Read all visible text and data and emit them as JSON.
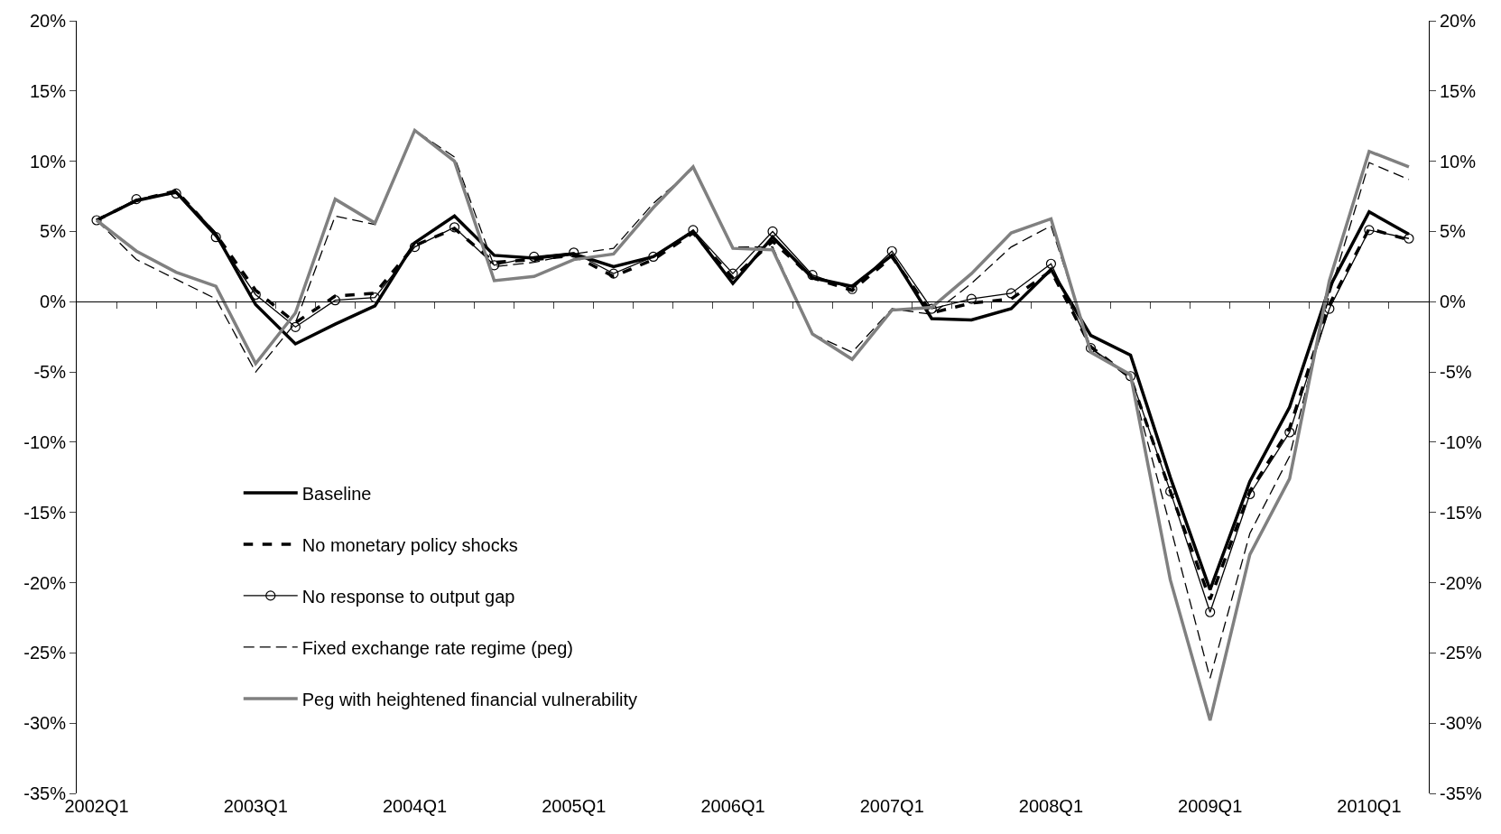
{
  "chart_data": {
    "type": "line",
    "categories": [
      "2002Q1",
      null,
      null,
      null,
      "2003Q1",
      null,
      null,
      null,
      "2004Q1",
      null,
      null,
      null,
      "2005Q1",
      null,
      null,
      null,
      "2006Q1",
      null,
      null,
      null,
      "2007Q1",
      null,
      null,
      null,
      "2008Q1",
      null,
      null,
      null,
      "2009Q1",
      null,
      null,
      null,
      "2010Q1",
      null
    ],
    "series": [
      {
        "name": "Baseline",
        "color": "#000000",
        "line_style": "solid",
        "marker": "none",
        "values": [
          5.8,
          7.2,
          7.8,
          4.8,
          -0.2,
          -3.0,
          -1.6,
          -0.3,
          4.2,
          6.1,
          3.3,
          3.1,
          3.4,
          2.5,
          3.2,
          5.0,
          1.3,
          4.6,
          1.7,
          1.1,
          3.3,
          -1.2,
          -1.3,
          -0.5,
          2.3,
          -2.4,
          -3.8,
          -12.5,
          -20.5,
          -12.8,
          -7.5,
          1.0,
          6.4,
          4.8
        ]
      },
      {
        "name": "No monetary policy shocks",
        "color": "#000000",
        "line_style": "dashed",
        "marker": "none",
        "values": [
          5.8,
          7.2,
          7.9,
          4.8,
          0.8,
          -1.5,
          0.4,
          0.6,
          4.0,
          5.2,
          2.8,
          3.0,
          3.3,
          1.8,
          3.0,
          4.9,
          1.7,
          4.3,
          1.7,
          0.8,
          3.2,
          -0.8,
          -0.1,
          0.2,
          2.2,
          -3.2,
          -5.4,
          -13.5,
          -21.2,
          -13.5,
          -9.0,
          -0.2,
          5.2,
          4.4
        ]
      },
      {
        "name": "No response to output gap",
        "color": "#000000",
        "line_style": "solid",
        "marker": "circle",
        "values": [
          5.8,
          7.3,
          7.7,
          4.6,
          0.5,
          -1.8,
          0.1,
          0.3,
          3.9,
          5.3,
          2.6,
          3.2,
          3.5,
          2.0,
          3.2,
          5.1,
          2.0,
          5.0,
          1.9,
          0.9,
          3.6,
          -0.5,
          0.2,
          0.6,
          2.7,
          -3.3,
          -5.3,
          -13.5,
          -22.1,
          -13.7,
          -9.3,
          -0.5,
          5.1,
          4.5
        ]
      },
      {
        "name": "Fixed exchange rate regime (peg)",
        "color": "#000000",
        "line_style": "dashed",
        "marker": "none",
        "values": [
          5.8,
          3.0,
          1.6,
          0.2,
          -5.0,
          -1.5,
          6.1,
          5.5,
          12.2,
          10.3,
          2.5,
          2.8,
          3.4,
          3.8,
          7.0,
          9.5,
          3.9,
          3.9,
          -2.3,
          -3.6,
          -0.5,
          -0.9,
          1.3,
          3.9,
          5.4,
          -3.3,
          -5.5,
          -16.0,
          -26.8,
          -16.5,
          -11.0,
          0.5,
          9.9,
          8.7
        ]
      },
      {
        "name": "Peg with heightened financial vulnerability",
        "color": "#808080",
        "line_style": "solid",
        "marker": "none",
        "values": [
          5.8,
          3.6,
          2.1,
          1.1,
          -4.4,
          -0.8,
          7.3,
          5.6,
          12.2,
          10.0,
          1.5,
          1.8,
          3.0,
          3.4,
          6.7,
          9.6,
          3.8,
          3.7,
          -2.3,
          -4.1,
          -0.6,
          -0.4,
          2.0,
          4.9,
          5.9,
          -3.6,
          -5.2,
          -19.8,
          -29.8,
          -18.0,
          -12.6,
          1.5,
          10.7,
          9.6
        ]
      }
    ],
    "ylim": [
      -35,
      20
    ],
    "yticks": [
      {
        "value": -35,
        "label": "-35%"
      },
      {
        "value": -30,
        "label": "-30%"
      },
      {
        "value": -25,
        "label": "-25%"
      },
      {
        "value": -20,
        "label": "-20%"
      },
      {
        "value": -15,
        "label": "-15%"
      },
      {
        "value": -10,
        "label": "-10%"
      },
      {
        "value": -5,
        "label": "-5%"
      },
      {
        "value": 0,
        "label": "0%"
      },
      {
        "value": 5,
        "label": "5%"
      },
      {
        "value": 10,
        "label": "10%"
      },
      {
        "value": 15,
        "label": "15%"
      },
      {
        "value": 20,
        "label": "20%"
      }
    ],
    "y2lim": [
      -35,
      20
    ],
    "y2ticks": [
      {
        "value": -35,
        "label": "-35%"
      },
      {
        "value": -30,
        "label": "-30%"
      },
      {
        "value": -25,
        "label": "-25%"
      },
      {
        "value": -20,
        "label": "-20%"
      },
      {
        "value": -15,
        "label": "-15%"
      },
      {
        "value": -10,
        "label": "-10%"
      },
      {
        "value": -5,
        "label": "-5%"
      },
      {
        "value": 0,
        "label": "0%"
      },
      {
        "value": 5,
        "label": "5%"
      },
      {
        "value": 10,
        "label": "10%"
      },
      {
        "value": 15,
        "label": "15%"
      },
      {
        "value": 20,
        "label": "20%"
      }
    ],
    "legend": "bottom left"
  }
}
